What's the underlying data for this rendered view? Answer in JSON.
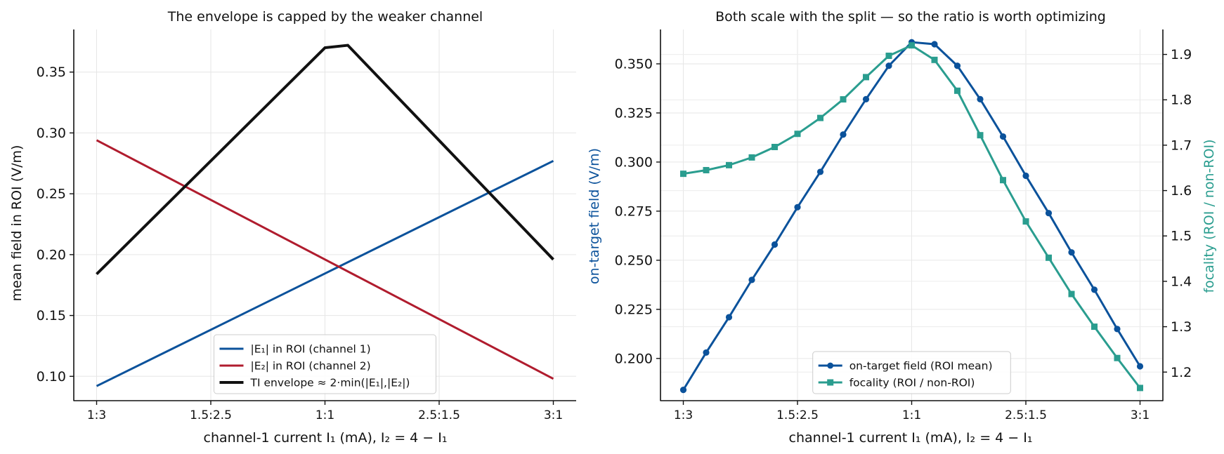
{
  "chart_data": [
    {
      "type": "line",
      "title": "The envelope is capped by the weaker channel",
      "xlabel": "channel-1 current I₁ (mA),  I₂ = 4 − I₁",
      "ylabel": "mean field in ROI (V/m)",
      "xlim": [
        0.9,
        3.1
      ],
      "ylim": [
        0.08,
        0.385
      ],
      "xticks": [
        {
          "x": 1.0,
          "label": "1:3"
        },
        {
          "x": 1.5,
          "label": "1.5:2.5"
        },
        {
          "x": 2.0,
          "label": "1:1"
        },
        {
          "x": 2.5,
          "label": "2.5:1.5"
        },
        {
          "x": 3.0,
          "label": "3:1"
        }
      ],
      "yticks": [
        {
          "y": 0.1,
          "label": "0.10"
        },
        {
          "y": 0.15,
          "label": "0.15"
        },
        {
          "y": 0.2,
          "label": "0.20"
        },
        {
          "y": 0.25,
          "label": "0.25"
        },
        {
          "y": 0.3,
          "label": "0.30"
        },
        {
          "y": 0.35,
          "label": "0.35"
        }
      ],
      "grid": true,
      "legend_position": "lower center",
      "series": [
        {
          "name": "|E₁| in ROI  (channel 1)",
          "color": "#0b529b",
          "width": 3,
          "x": [
            1.0,
            3.0
          ],
          "y": [
            0.092,
            0.277
          ]
        },
        {
          "name": "|E₂| in ROI  (channel 2)",
          "color": "#b01c2e",
          "width": 3,
          "x": [
            1.0,
            3.0
          ],
          "y": [
            0.294,
            0.098
          ]
        },
        {
          "name": "TI envelope ≈ 2·min(|E₁|,|E₂|)",
          "color": "#111111",
          "width": 4,
          "x": [
            1.0,
            2.0,
            2.1,
            3.0
          ],
          "y": [
            0.184,
            0.37,
            0.372,
            0.196
          ]
        }
      ]
    },
    {
      "type": "line",
      "title": "Both scale with the split — so the ratio is worth optimizing",
      "xlabel": "channel-1 current I₁ (mA),  I₂ = 4 − I₁",
      "ylabel": "on-target field (V/m)",
      "ylabel_right": "focality  (ROI / non-ROI)",
      "ylabel_color": "#0b529b",
      "ylabel_right_color": "#2a9d8f",
      "xlim": [
        0.9,
        3.1
      ],
      "ylim": [
        0.1785,
        0.3675
      ],
      "ylim_right": [
        1.137,
        1.955
      ],
      "xticks": [
        {
          "x": 1.0,
          "label": "1:3"
        },
        {
          "x": 1.5,
          "label": "1.5:2.5"
        },
        {
          "x": 2.0,
          "label": "1:1"
        },
        {
          "x": 2.5,
          "label": "2.5:1.5"
        },
        {
          "x": 3.0,
          "label": "3:1"
        }
      ],
      "yticks": [
        {
          "y": 0.2,
          "label": "0.200"
        },
        {
          "y": 0.225,
          "label": "0.225"
        },
        {
          "y": 0.25,
          "label": "0.250"
        },
        {
          "y": 0.275,
          "label": "0.275"
        },
        {
          "y": 0.3,
          "label": "0.300"
        },
        {
          "y": 0.325,
          "label": "0.325"
        },
        {
          "y": 0.35,
          "label": "0.350"
        }
      ],
      "yticks_right": [
        {
          "y": 1.2,
          "label": "1.2"
        },
        {
          "y": 1.3,
          "label": "1.3"
        },
        {
          "y": 1.4,
          "label": "1.4"
        },
        {
          "y": 1.5,
          "label": "1.5"
        },
        {
          "y": 1.6,
          "label": "1.6"
        },
        {
          "y": 1.7,
          "label": "1.7"
        },
        {
          "y": 1.8,
          "label": "1.8"
        },
        {
          "y": 1.9,
          "label": "1.9"
        }
      ],
      "grid": true,
      "legend_position": "lower center",
      "series": [
        {
          "name": "on-target field (ROI mean)",
          "color": "#0b529b",
          "marker": "circle",
          "axis": "left",
          "x": [
            1.0,
            1.1,
            1.2,
            1.3,
            1.4,
            1.5,
            1.6,
            1.7,
            1.8,
            1.9,
            2.0,
            2.1,
            2.2,
            2.3,
            2.4,
            2.5,
            2.6,
            2.7,
            2.8,
            2.9,
            3.0
          ],
          "y": [
            0.184,
            0.203,
            0.221,
            0.24,
            0.258,
            0.277,
            0.295,
            0.314,
            0.332,
            0.349,
            0.361,
            0.36,
            0.349,
            0.332,
            0.313,
            0.293,
            0.274,
            0.254,
            0.235,
            0.215,
            0.196
          ]
        },
        {
          "name": "focality (ROI / non-ROI)",
          "color": "#2a9d8f",
          "marker": "square",
          "axis": "right",
          "x": [
            1.0,
            1.1,
            1.2,
            1.3,
            1.4,
            1.5,
            1.6,
            1.7,
            1.8,
            1.9,
            2.0,
            2.1,
            2.2,
            2.3,
            2.4,
            2.5,
            2.6,
            2.7,
            2.8,
            2.9,
            3.0
          ],
          "y": [
            1.637,
            1.645,
            1.656,
            1.673,
            1.696,
            1.725,
            1.76,
            1.801,
            1.85,
            1.897,
            1.92,
            1.888,
            1.82,
            1.722,
            1.623,
            1.532,
            1.452,
            1.372,
            1.3,
            1.231,
            1.165
          ]
        }
      ]
    }
  ]
}
